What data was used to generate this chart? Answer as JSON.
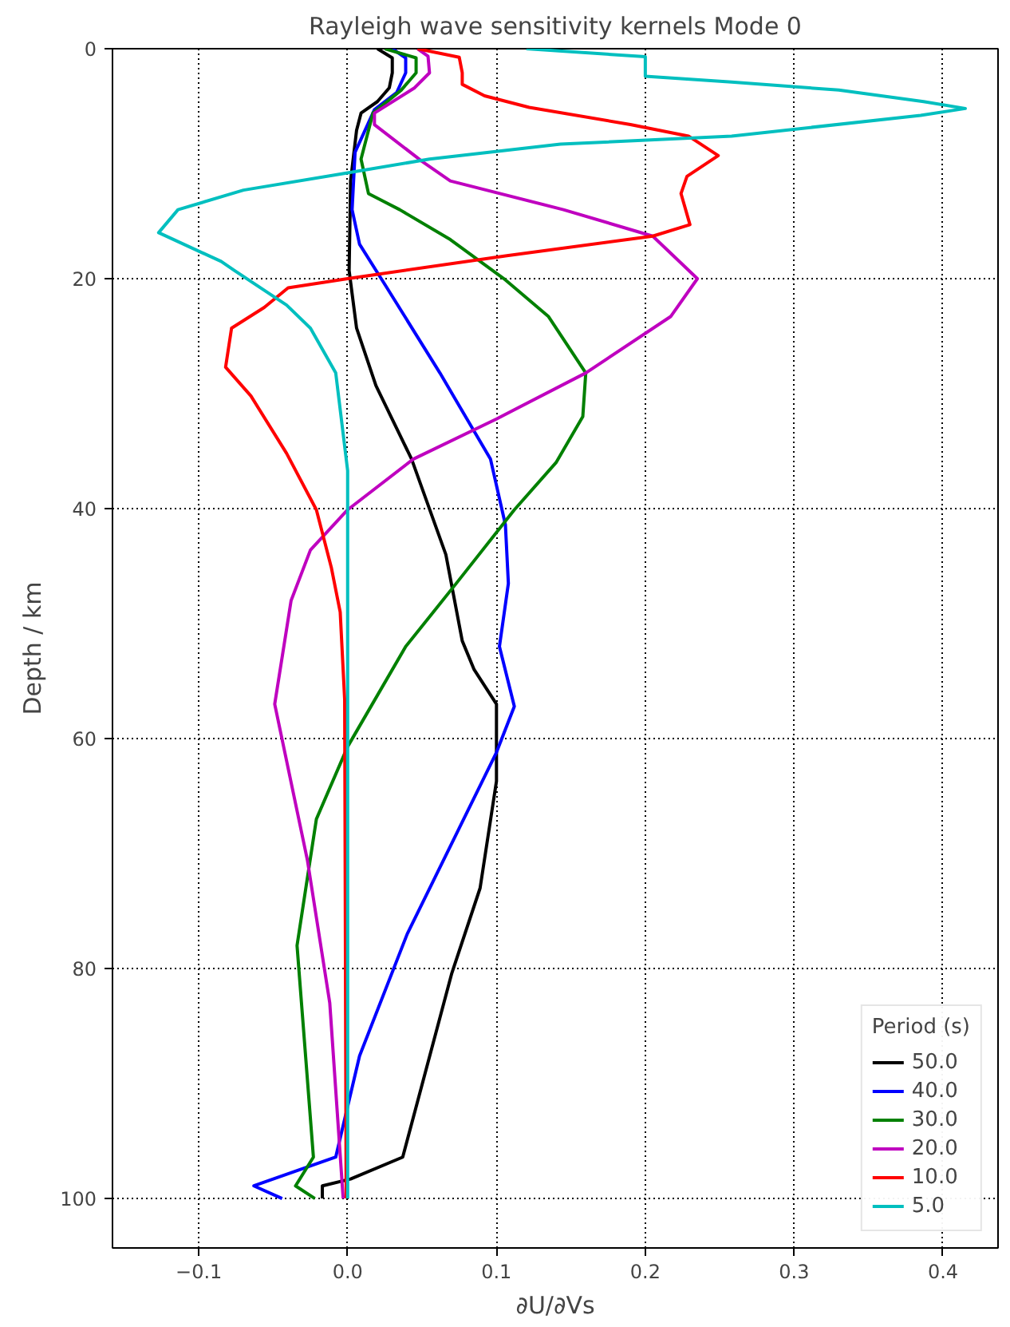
{
  "chart_data": {
    "type": "line",
    "orientation": "horizontal",
    "title": "Rayleigh wave sensitivity kernels Mode 0",
    "xlabel": "∂U/∂Vs",
    "ylabel": "Depth / km",
    "legend_title": "Period (s)",
    "legend": "bottom right",
    "grid": true,
    "marker": "none",
    "line_style": "solid",
    "xlim": [
      -0.158,
      0.437
    ],
    "ylim": [
      104.3,
      0
    ],
    "xticks": [
      {
        "value": -0.1,
        "label": "−0.1"
      },
      {
        "value": 0.0,
        "label": "0.0"
      },
      {
        "value": 0.1,
        "label": "0.1"
      },
      {
        "value": 0.2,
        "label": "0.2"
      },
      {
        "value": 0.3,
        "label": "0.3"
      },
      {
        "value": 0.4,
        "label": "0.4"
      }
    ],
    "yticks": [
      0,
      20,
      40,
      60,
      80,
      100
    ],
    "series": [
      {
        "name": "50.0",
        "color": "#000000",
        "x": [
          0,
          0.8,
          2.1,
          3.4,
          4.6,
          5.6,
          7.1,
          11.5,
          19.3,
          24.3,
          29.3,
          35.7,
          44,
          51.5,
          54,
          57,
          61,
          63.7,
          73,
          80.4,
          96.4,
          98.3,
          98.9,
          100
        ],
        "values": [
          0.02,
          0.03,
          0.03,
          0.028,
          0.02,
          0.009,
          0.006,
          0.002,
          0.001,
          0.006,
          0.019,
          0.043,
          0.066,
          0.077,
          0.085,
          0.1,
          0.1,
          0.1,
          0.089,
          0.07,
          0.037,
          0.002,
          -0.017,
          -0.017
        ]
      },
      {
        "name": "40.0",
        "color": "#0000ff",
        "x": [
          0,
          0.8,
          2.1,
          3.8,
          5.3,
          9,
          14,
          17,
          20.5,
          28.2,
          35.7,
          41.4,
          46.5,
          52,
          57.2,
          61.2,
          77,
          87.6,
          96.4,
          98.9,
          100
        ],
        "values": [
          0.03,
          0.039,
          0.039,
          0.033,
          0.018,
          0.005,
          0.003,
          0.008,
          0.025,
          0.062,
          0.096,
          0.106,
          0.108,
          0.102,
          0.112,
          0.1,
          0.04,
          0.008,
          -0.008,
          -0.063,
          -0.044
        ]
      },
      {
        "name": "30.0",
        "color": "#008000",
        "x": [
          0,
          0.8,
          2.1,
          3.6,
          5.6,
          9.6,
          12.6,
          14,
          16.6,
          20,
          23.3,
          28.2,
          32,
          36,
          40.1,
          46.5,
          52,
          60.7,
          67,
          78,
          96.4,
          98.9,
          100
        ],
        "values": [
          0.025,
          0.046,
          0.046,
          0.036,
          0.017,
          0.009,
          0.014,
          0.035,
          0.069,
          0.105,
          0.135,
          0.16,
          0.158,
          0.14,
          0.112,
          0.073,
          0.039,
          0.0,
          -0.021,
          -0.034,
          -0.023,
          -0.035,
          -0.022
        ]
      },
      {
        "name": "20.0",
        "color": "#bf00bf",
        "x": [
          0,
          0.65,
          2.1,
          3.4,
          5.6,
          6.6,
          9.8,
          11.5,
          14,
          16.3,
          20,
          23.3,
          28.2,
          32.2,
          35.7,
          40.1,
          43.6,
          48,
          57,
          70.6,
          83,
          100
        ],
        "values": [
          0.047,
          0.054,
          0.055,
          0.045,
          0.018,
          0.018,
          0.05,
          0.069,
          0.145,
          0.205,
          0.235,
          0.217,
          0.16,
          0.1,
          0.044,
          0.0,
          -0.025,
          -0.038,
          -0.049,
          -0.027,
          -0.012,
          -0.003
        ]
      },
      {
        "name": "10.0",
        "color": "#ff0000",
        "x": [
          0,
          0.75,
          2.1,
          3.1,
          4.1,
          5.1,
          6.6,
          7.6,
          9.3,
          11.1,
          12.6,
          15.3,
          16.3,
          18,
          20,
          20.8,
          22.5,
          24.3,
          27.7,
          30.2,
          35.2,
          40.1,
          45.1,
          49,
          56.6,
          100
        ],
        "values": [
          0.047,
          0.075,
          0.077,
          0.077,
          0.092,
          0.122,
          0.19,
          0.229,
          0.249,
          0.228,
          0.224,
          0.23,
          0.205,
          0.107,
          0.0,
          -0.04,
          -0.056,
          -0.078,
          -0.082,
          -0.065,
          -0.041,
          -0.021,
          -0.011,
          -0.005,
          -0.002,
          -0.001
        ]
      },
      {
        "name": "5.0",
        "color": "#00bfbf",
        "x": [
          0,
          0.7,
          2.4,
          2.9,
          3.6,
          4.6,
          5.2,
          5.8,
          7.6,
          8.3,
          9.6,
          10.8,
          12.3,
          14,
          16,
          18.5,
          19.3,
          22.3,
          24.3,
          28.2,
          36.7,
          100
        ],
        "values": [
          0.12,
          0.2,
          0.2,
          0.258,
          0.33,
          0.387,
          0.415,
          0.385,
          0.258,
          0.143,
          0.055,
          0.0,
          -0.07,
          -0.114,
          -0.127,
          -0.085,
          -0.076,
          -0.041,
          -0.025,
          -0.008,
          0.0,
          0.0
        ]
      }
    ]
  }
}
